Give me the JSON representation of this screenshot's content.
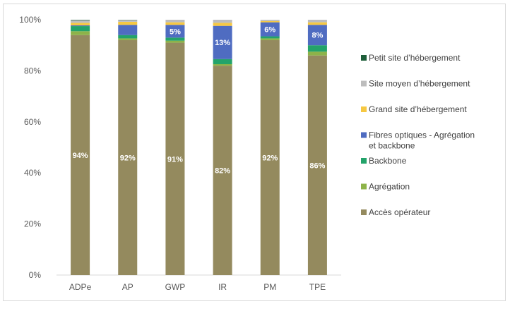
{
  "chart_data": {
    "type": "bar",
    "stacked": true,
    "percent": true,
    "title": "",
    "xlabel": "",
    "ylabel": "",
    "ylim": [
      0,
      100
    ],
    "yticks": [
      0,
      20,
      40,
      60,
      80,
      100
    ],
    "ytick_labels": [
      "0%",
      "20%",
      "40%",
      "60%",
      "80%",
      "100%"
    ],
    "grid": false,
    "legend_position": "right",
    "categories": [
      "ADPe",
      "AP",
      "GWP",
      "IR",
      "PM",
      "TPE"
    ],
    "series": [
      {
        "name": "Accès opérateur",
        "color": "#948A5E",
        "values": [
          94,
          92,
          91,
          82,
          92,
          86
        ],
        "labels": [
          "94%",
          "92%",
          "91%",
          "82%",
          "92%",
          "86%"
        ]
      },
      {
        "name": "Agrégation",
        "color": "#8DB349",
        "values": [
          1.5,
          0.7,
          0.8,
          0.6,
          0.7,
          1.5
        ],
        "labels": [
          "",
          "",
          "",
          "",
          "",
          ""
        ]
      },
      {
        "name": "Backbone",
        "color": "#23A36A",
        "values": [
          2.0,
          1.3,
          1.2,
          2.0,
          0.8,
          2.5
        ],
        "labels": [
          "",
          "",
          "",
          "",
          "",
          ""
        ]
      },
      {
        "name": "Fibres optiques - Agrégation et backbone",
        "color": "#4F6CC1",
        "values": [
          0.3,
          4.0,
          5.0,
          13.0,
          5.5,
          8.0
        ],
        "labels": [
          "",
          "",
          "5%",
          "13%",
          "6%",
          "8%"
        ]
      },
      {
        "name": "Grand site d’hébergement",
        "color": "#F6C842",
        "values": [
          1.0,
          1.2,
          1.0,
          1.2,
          0.5,
          1.0
        ],
        "labels": [
          "",
          "",
          "",
          "",
          "",
          ""
        ]
      },
      {
        "name": "Site moyen d’hébergement",
        "color": "#BDBDBD",
        "values": [
          1.0,
          0.7,
          1.0,
          1.2,
          0.5,
          1.0
        ],
        "labels": [
          "",
          "",
          "",
          "",
          "",
          ""
        ]
      },
      {
        "name": "Petit site d’hébergement",
        "color": "#1E5E3A",
        "values": [
          0.2,
          0.1,
          0.0,
          0.0,
          0.0,
          0.0
        ],
        "labels": [
          "",
          "",
          "",
          "",
          "",
          ""
        ]
      }
    ],
    "legend_order": [
      6,
      5,
      4,
      3,
      2,
      1,
      0
    ]
  }
}
